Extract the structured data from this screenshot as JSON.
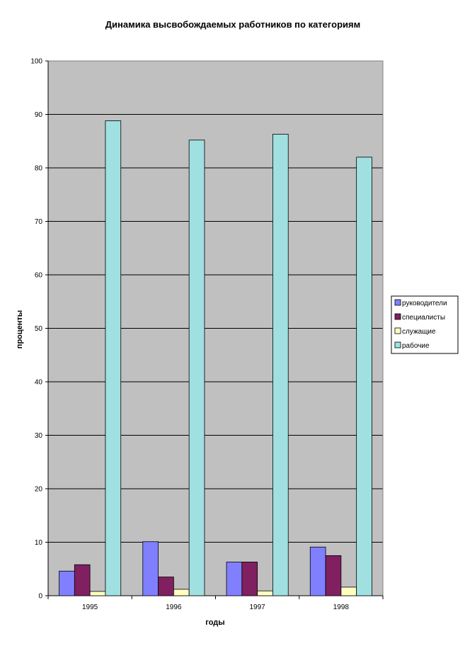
{
  "chart_data": {
    "type": "bar",
    "title": "Динамика высвобождаемых работников по категориям",
    "xlabel": "годы",
    "ylabel": "проценты",
    "categories": [
      "1995",
      "1996",
      "1997",
      "1998"
    ],
    "ylim": [
      0,
      100
    ],
    "yticks": [
      0,
      10,
      20,
      30,
      40,
      50,
      60,
      70,
      80,
      90,
      100
    ],
    "grid": true,
    "legend_position": "right",
    "plot_background": "#c0c0c0",
    "series": [
      {
        "name": "руководители",
        "color": "#8080ff",
        "values": [
          4.6,
          10.1,
          6.3,
          9.1
        ]
      },
      {
        "name": "специалисты",
        "color": "#802060",
        "values": [
          5.8,
          3.5,
          6.3,
          7.5
        ]
      },
      {
        "name": "служащие",
        "color": "#ffffc0",
        "values": [
          0.8,
          1.2,
          0.9,
          1.6
        ]
      },
      {
        "name": "рабочие",
        "color": "#a0e0e0",
        "values": [
          88.8,
          85.2,
          86.3,
          82.0
        ]
      }
    ]
  }
}
